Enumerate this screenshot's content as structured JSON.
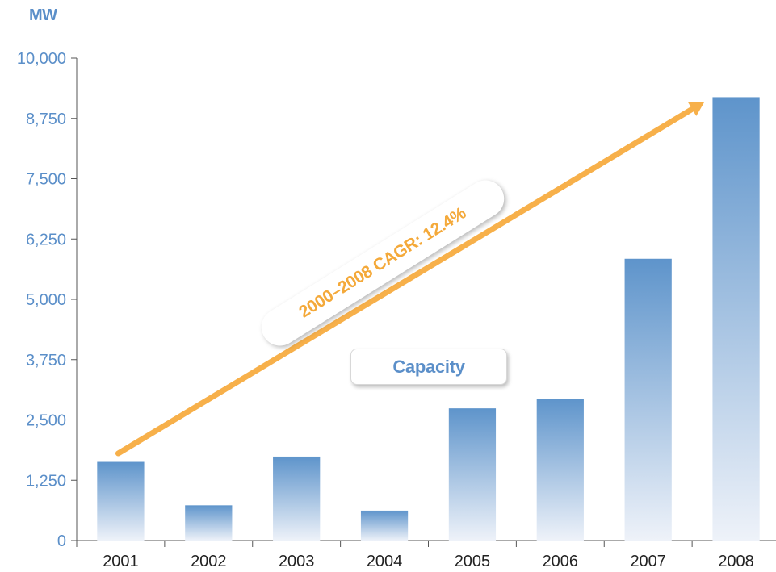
{
  "chart_data": {
    "type": "bar",
    "unit_label": "MW",
    "categories": [
      "2001",
      "2002",
      "2003",
      "2004",
      "2005",
      "2006",
      "2007",
      "2008"
    ],
    "series": [
      {
        "name": "Capacity",
        "values": [
          1630,
          730,
          1740,
          620,
          2740,
          2940,
          5840,
          9190
        ]
      }
    ],
    "ylim": [
      0,
      10000
    ],
    "yticks": [
      "0",
      "1,250",
      "2,500",
      "3,750",
      "5,000",
      "6,250",
      "7,500",
      "8,750",
      "10,000"
    ],
    "ytick_values": [
      0,
      1250,
      2500,
      3750,
      5000,
      6250,
      7500,
      8750,
      10000
    ],
    "annotation": "2000–2008 CAGR: 12.4%",
    "legend_placement": "center",
    "colors": {
      "bar_top": "#5e94cb",
      "bar_bottom": "#eef2f9",
      "axis_text": "#5b8fc9",
      "arrow": "#f7b04a"
    }
  }
}
